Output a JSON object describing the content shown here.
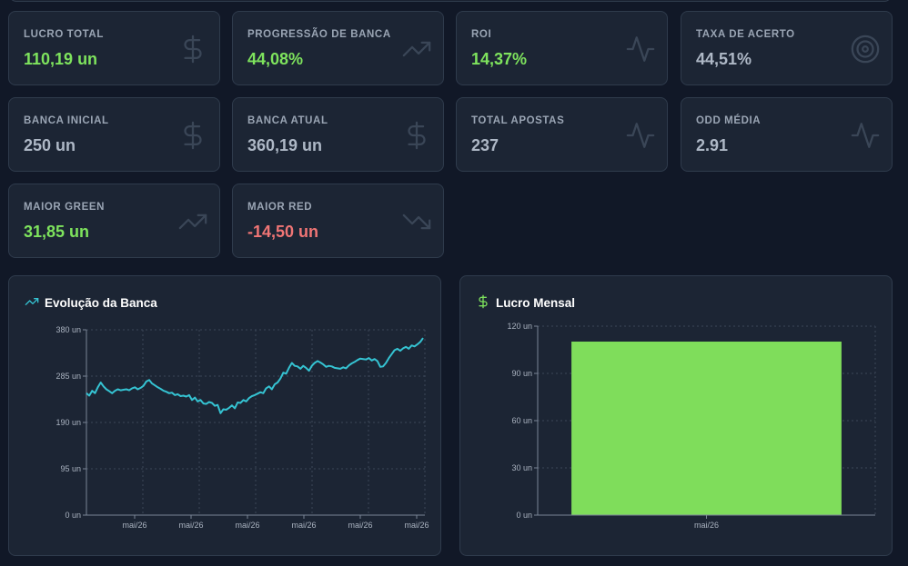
{
  "colors": {
    "green": "#7ee35d",
    "red": "#f07575",
    "line": "#35c3d2",
    "bar": "#7fdd5b",
    "icon": "#3a4657"
  },
  "cards": [
    {
      "label": "LUCRO TOTAL",
      "value": "110,19 un",
      "tone": "green",
      "icon": "dollar-icon"
    },
    {
      "label": "PROGRESSÃO DE BANCA",
      "value": "44,08%",
      "tone": "green",
      "icon": "trending-up-icon"
    },
    {
      "label": "ROI",
      "value": "14,37%",
      "tone": "green",
      "icon": "activity-icon"
    },
    {
      "label": "TAXA DE ACERTO",
      "value": "44,51%",
      "tone": "gray",
      "icon": "target-icon"
    },
    {
      "label": "BANCA INICIAL",
      "value": "250 un",
      "tone": "gray",
      "icon": "dollar-icon"
    },
    {
      "label": "BANCA ATUAL",
      "value": "360,19 un",
      "tone": "gray",
      "icon": "dollar-icon"
    },
    {
      "label": "TOTAL APOSTAS",
      "value": "237",
      "tone": "gray",
      "icon": "activity-icon"
    },
    {
      "label": "ODD MÉDIA",
      "value": "2.91",
      "tone": "gray",
      "icon": "activity-icon"
    },
    {
      "label": "MAIOR GREEN",
      "value": "31,85 un",
      "tone": "green",
      "icon": "trending-up-icon"
    },
    {
      "label": "MAIOR RED",
      "value": "-14,50 un",
      "tone": "red",
      "icon": "trending-down-icon"
    }
  ],
  "panels": {
    "evolution": {
      "title": "Evolução da Banca",
      "icon": "trending-up-icon"
    },
    "monthly": {
      "title": "Lucro Mensal",
      "icon": "dollar-icon"
    }
  },
  "chart_data": [
    {
      "type": "line",
      "ylim": [
        0,
        380
      ],
      "yticks": [
        "0 un",
        "95 un",
        "190 un",
        "285 un",
        "380 un"
      ],
      "ytick_values": [
        0,
        95,
        190,
        285,
        380
      ],
      "xticks": [
        "mai/26",
        "mai/26",
        "mai/26",
        "mai/26",
        "mai/26",
        "mai/26"
      ],
      "grid": true,
      "series": [
        {
          "values": [
            250,
            245,
            255,
            250,
            262,
            272,
            264,
            258,
            254,
            250,
            255,
            258,
            256,
            257,
            258,
            256,
            260,
            262,
            258,
            261,
            265,
            274,
            277,
            270,
            266,
            262,
            259,
            255,
            253,
            250,
            251,
            246,
            248,
            244,
            245,
            243,
            246,
            236,
            241,
            233,
            236,
            229,
            228,
            232,
            230,
            224,
            226,
            209,
            217,
            216,
            220,
            225,
            219,
            231,
            230,
            236,
            233,
            240,
            244,
            246,
            249,
            252,
            250,
            260,
            264,
            258,
            268,
            272,
            280,
            292,
            290,
            302,
            312,
            306,
            305,
            300,
            306,
            302,
            296,
            306,
            312,
            316,
            313,
            309,
            304,
            306,
            305,
            302,
            301,
            300,
            303,
            301,
            307,
            311,
            314,
            318,
            321,
            320,
            319,
            322,
            317,
            320,
            316,
            304,
            305,
            312,
            322,
            330,
            338,
            341,
            337,
            342,
            345,
            341,
            348,
            346,
            350,
            355,
            363
          ]
        }
      ]
    },
    {
      "type": "bar",
      "ylim": [
        0,
        120
      ],
      "yticks": [
        "0 un",
        "30 un",
        "60 un",
        "90 un",
        "120 un"
      ],
      "ytick_values": [
        0,
        30,
        60,
        90,
        120
      ],
      "categories": [
        "mai/26"
      ],
      "values": [
        110.19
      ],
      "grid": true
    }
  ]
}
